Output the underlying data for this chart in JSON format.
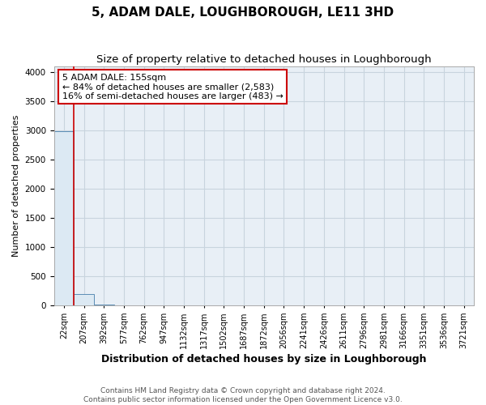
{
  "title": "5, ADAM DALE, LOUGHBOROUGH, LE11 3HD",
  "subtitle": "Size of property relative to detached houses in Loughborough",
  "xlabel": "Distribution of detached houses by size in Loughborough",
  "ylabel": "Number of detached properties",
  "bar_color": "#dce9f3",
  "bar_edge_color": "#5a8db5",
  "x_labels": [
    "22sqm",
    "207sqm",
    "392sqm",
    "577sqm",
    "762sqm",
    "947sqm",
    "1132sqm",
    "1317sqm",
    "1502sqm",
    "1687sqm",
    "1872sqm",
    "2056sqm",
    "2241sqm",
    "2426sqm",
    "2611sqm",
    "2796sqm",
    "2981sqm",
    "3166sqm",
    "3351sqm",
    "3536sqm",
    "3721sqm"
  ],
  "bar_heights": [
    2985,
    190,
    8,
    3,
    2,
    1,
    1,
    1,
    0,
    0,
    0,
    0,
    0,
    0,
    0,
    0,
    0,
    0,
    0,
    0,
    0
  ],
  "ylim": [
    0,
    4100
  ],
  "yticks": [
    0,
    500,
    1000,
    1500,
    2000,
    2500,
    3000,
    3500,
    4000
  ],
  "property_line_x": 0.5,
  "property_line_color": "#cc0000",
  "annotation_line1": "5 ADAM DALE: 155sqm",
  "annotation_line2": "← 84% of detached houses are smaller (2,583)",
  "annotation_line3": "16% of semi-detached houses are larger (483) →",
  "annotation_box_color": "#cc0000",
  "footer_text": "Contains HM Land Registry data © Crown copyright and database right 2024.\nContains public sector information licensed under the Open Government Licence v3.0.",
  "background_color": "#e8eff6",
  "grid_color": "#c8d4de",
  "title_fontsize": 11,
  "subtitle_fontsize": 9.5,
  "xlabel_fontsize": 9,
  "ylabel_fontsize": 8,
  "tick_fontsize": 7,
  "footer_fontsize": 6.5,
  "annotation_fontsize": 8
}
